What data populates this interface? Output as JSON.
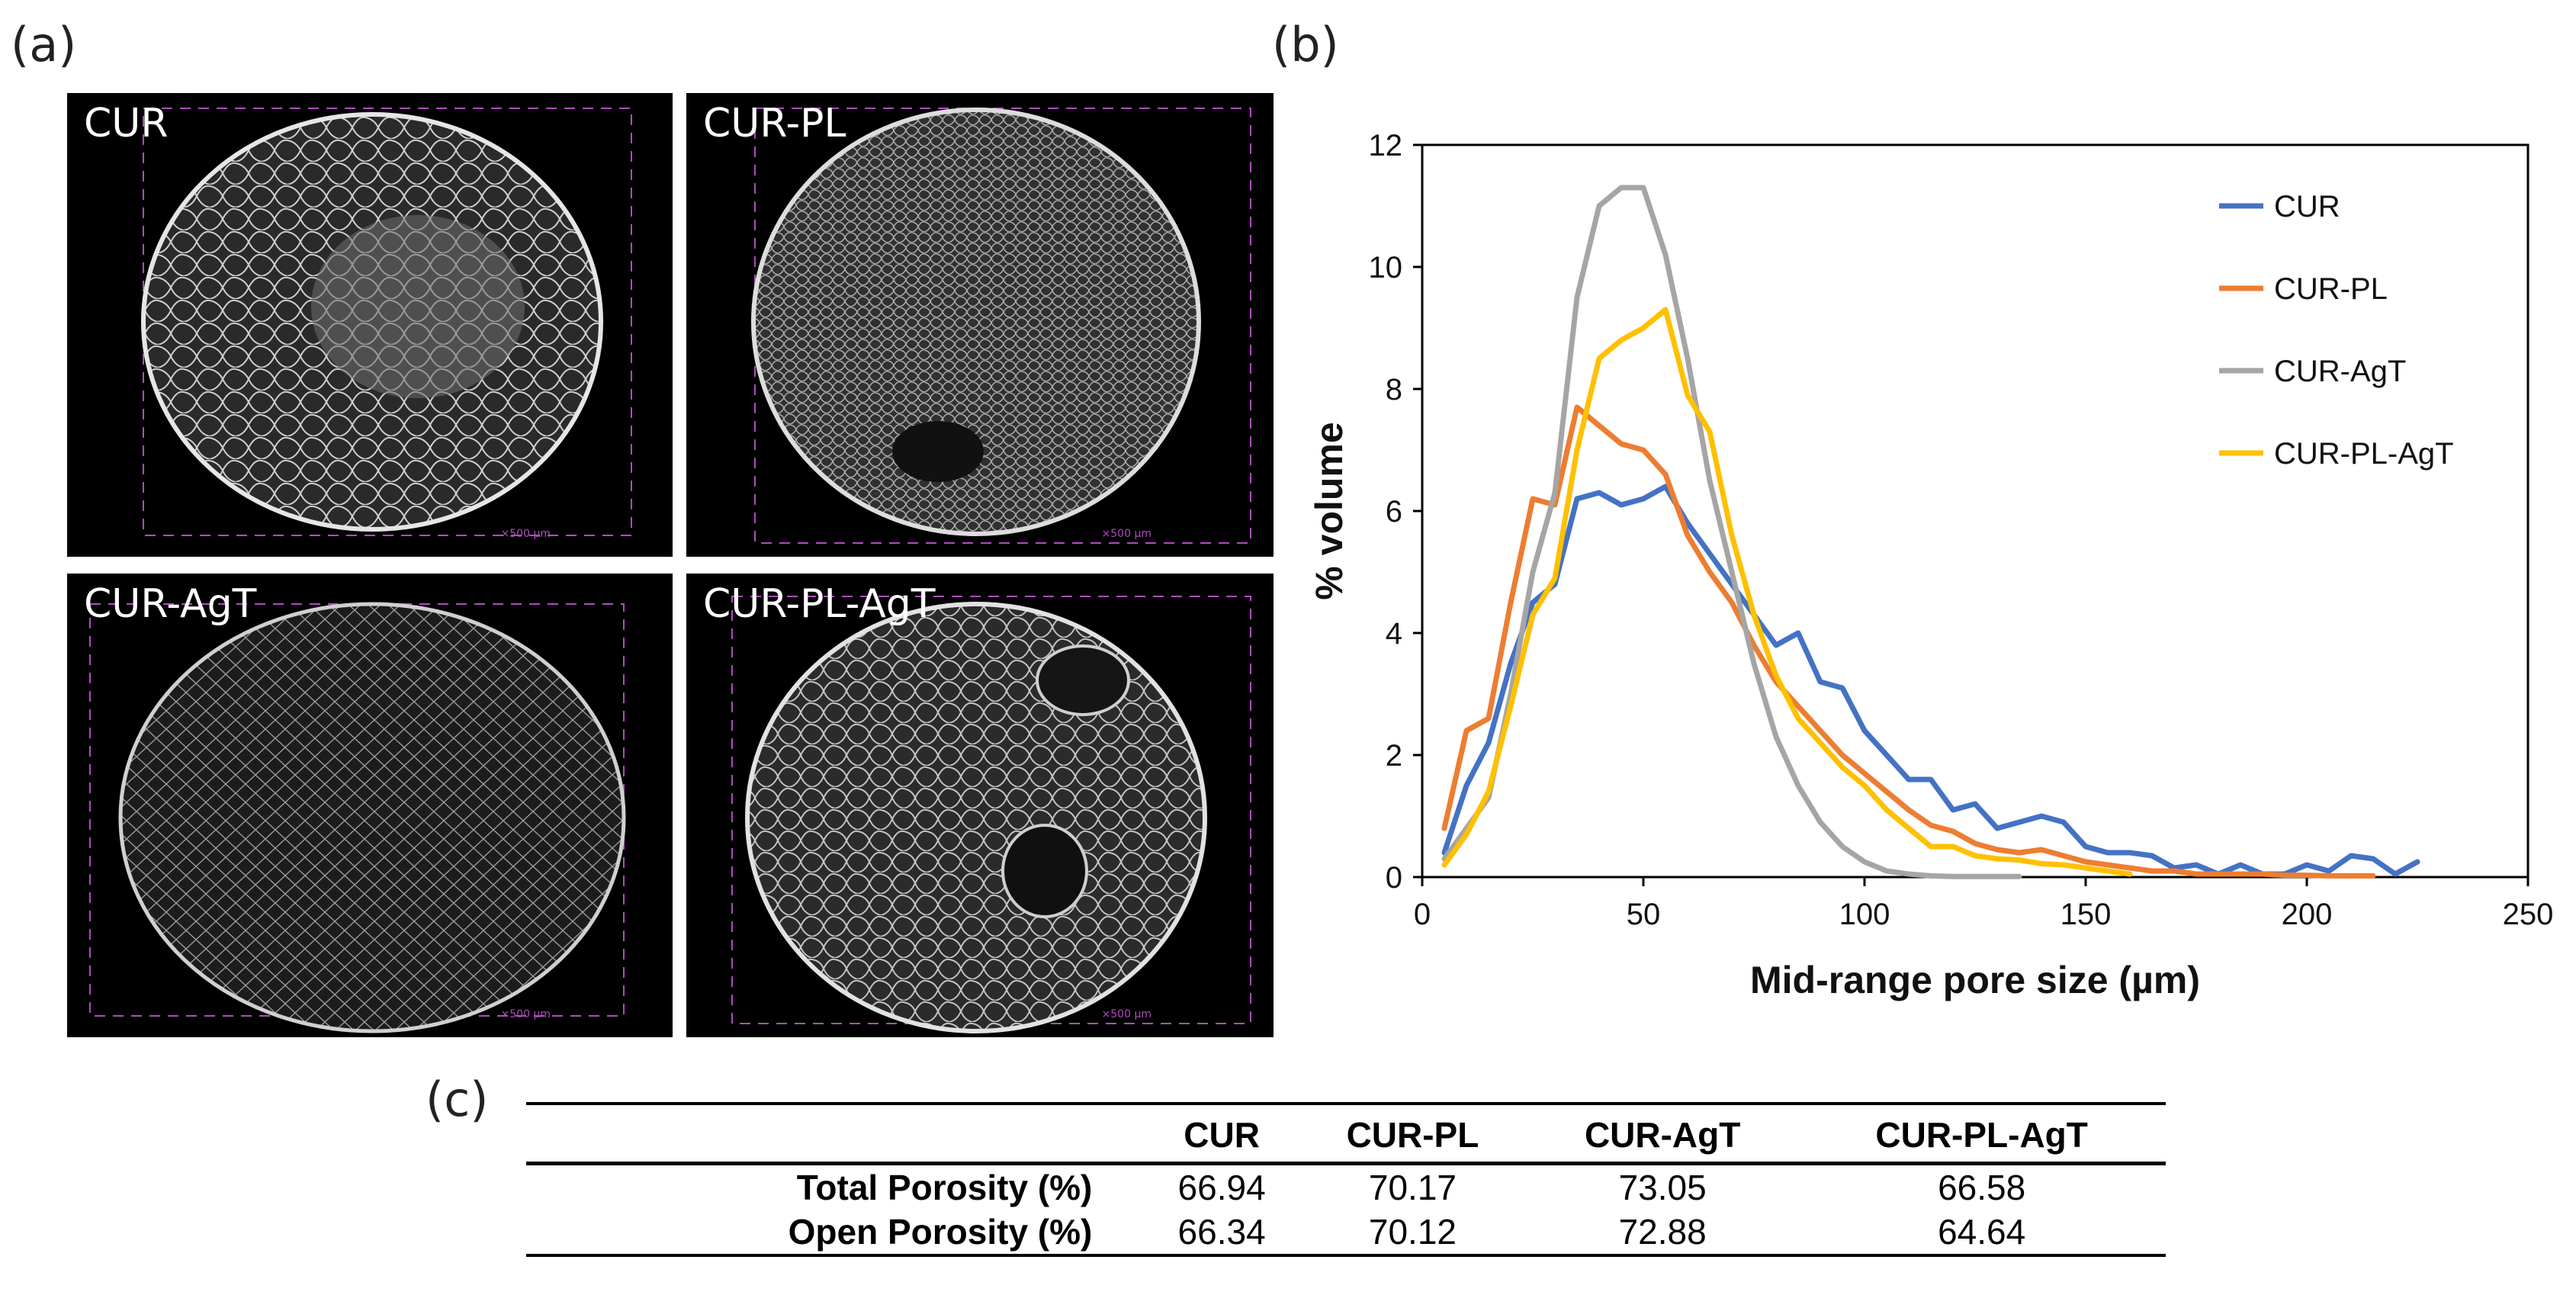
{
  "figure": {
    "panel_a_label": "(a)",
    "panel_b_label": "(b)",
    "panel_c_label": "(c)"
  },
  "micrographs": [
    {
      "label": "CUR",
      "scale": "×500 µm"
    },
    {
      "label": "CUR-PL",
      "scale": "×500 µm"
    },
    {
      "label": "CUR-AgT",
      "scale": "×500 µm"
    },
    {
      "label": "CUR-PL-AgT",
      "scale": "×500 µm"
    }
  ],
  "chart_data": {
    "type": "line",
    "title": "",
    "xlabel": "Mid-range pore size (µm)",
    "ylabel": "% volume",
    "xlim": [
      0,
      250
    ],
    "ylim": [
      0,
      12
    ],
    "xticks": [
      0,
      50,
      100,
      150,
      200,
      250
    ],
    "yticks": [
      0,
      2,
      4,
      6,
      8,
      10,
      12
    ],
    "grid": false,
    "legend_position": "top-right",
    "series": [
      {
        "name": "CUR",
        "color": "#4472c4",
        "x": [
          5,
          10,
          15,
          20,
          25,
          30,
          35,
          40,
          45,
          50,
          55,
          60,
          65,
          70,
          75,
          80,
          85,
          90,
          95,
          100,
          105,
          110,
          115,
          120,
          125,
          130,
          135,
          140,
          145,
          150,
          155,
          160,
          165,
          170,
          175,
          180,
          185,
          190,
          195,
          200,
          205,
          210,
          215,
          220,
          225
        ],
        "y": [
          0.4,
          1.5,
          2.2,
          3.5,
          4.5,
          4.8,
          6.2,
          6.3,
          6.1,
          6.2,
          6.4,
          5.8,
          5.3,
          4.8,
          4.3,
          3.8,
          4.0,
          3.2,
          3.1,
          2.4,
          2.0,
          1.6,
          1.6,
          1.1,
          1.2,
          0.8,
          0.9,
          1.0,
          0.9,
          0.5,
          0.4,
          0.4,
          0.35,
          0.15,
          0.2,
          0.05,
          0.2,
          0.05,
          0.05,
          0.2,
          0.1,
          0.35,
          0.3,
          0.05,
          0.25
        ]
      },
      {
        "name": "CUR-PL",
        "color": "#ed7d31",
        "x": [
          5,
          10,
          15,
          20,
          25,
          30,
          35,
          40,
          45,
          50,
          55,
          60,
          65,
          70,
          75,
          80,
          85,
          90,
          95,
          100,
          105,
          110,
          115,
          120,
          125,
          130,
          135,
          140,
          145,
          150,
          155,
          160,
          165,
          170,
          175,
          180,
          185,
          190,
          195,
          200,
          205,
          210,
          215
        ],
        "y": [
          0.8,
          2.4,
          2.6,
          4.5,
          6.2,
          6.1,
          7.7,
          7.4,
          7.1,
          7.0,
          6.6,
          5.6,
          5.0,
          4.5,
          3.8,
          3.2,
          2.8,
          2.4,
          2.0,
          1.7,
          1.4,
          1.1,
          0.85,
          0.75,
          0.55,
          0.45,
          0.4,
          0.45,
          0.35,
          0.25,
          0.2,
          0.15,
          0.1,
          0.1,
          0.05,
          0.05,
          0.05,
          0.05,
          0.03,
          0.03,
          0.02,
          0.02,
          0.02
        ]
      },
      {
        "name": "CUR-AgT",
        "color": "#a5a5a5",
        "x": [
          5,
          10,
          15,
          20,
          25,
          30,
          35,
          40,
          45,
          50,
          55,
          60,
          65,
          70,
          75,
          80,
          85,
          90,
          95,
          100,
          105,
          110,
          115,
          120,
          125,
          130,
          135
        ],
        "y": [
          0.3,
          0.8,
          1.3,
          3.0,
          5.0,
          6.3,
          9.5,
          11.0,
          11.3,
          11.3,
          10.2,
          8.5,
          6.5,
          5.0,
          3.5,
          2.3,
          1.5,
          0.9,
          0.5,
          0.25,
          0.1,
          0.05,
          0.02,
          0.01,
          0.01,
          0.01,
          0.01
        ]
      },
      {
        "name": "CUR-PL-AgT",
        "color": "#ffc000",
        "x": [
          5,
          10,
          15,
          20,
          25,
          30,
          35,
          40,
          45,
          50,
          55,
          60,
          65,
          70,
          75,
          80,
          85,
          90,
          95,
          100,
          105,
          110,
          115,
          120,
          125,
          130,
          135,
          140,
          145,
          150,
          155,
          160
        ],
        "y": [
          0.2,
          0.7,
          1.4,
          2.8,
          4.3,
          4.9,
          7.0,
          8.5,
          8.8,
          9.0,
          9.3,
          7.9,
          7.3,
          5.6,
          4.3,
          3.3,
          2.6,
          2.2,
          1.8,
          1.5,
          1.1,
          0.8,
          0.5,
          0.5,
          0.35,
          0.3,
          0.28,
          0.22,
          0.2,
          0.15,
          0.1,
          0.05
        ]
      }
    ]
  },
  "table": {
    "headers": [
      "",
      "CUR",
      "CUR-PL",
      "CUR-AgT",
      "CUR-PL-AgT"
    ],
    "rows": [
      {
        "label": "Total Porosity (%)",
        "values": [
          "66.94",
          "70.17",
          "73.05",
          "66.58"
        ]
      },
      {
        "label": "Open Porosity (%)",
        "values": [
          "66.34",
          "70.12",
          "72.88",
          "64.64"
        ]
      }
    ]
  }
}
